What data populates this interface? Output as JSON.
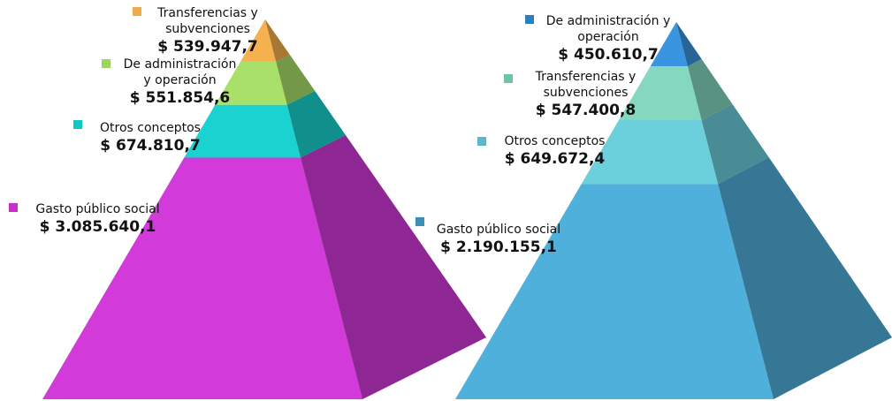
{
  "chart_data": [
    {
      "type": "pyramid",
      "categories": [
        "Transferencias y subvenciones",
        "De administración y operación",
        "Otros conceptos",
        "Gasto público social"
      ],
      "values": [
        539947.7,
        551854.6,
        674810.7,
        3085640.1
      ],
      "value_labels": [
        "$ 539.947,7",
        "$ 551.854,6",
        "$ 674.810,7",
        "$ 3.085.640,1"
      ],
      "colors": [
        "#f5b04f",
        "#a9e06a",
        "#1ad3d0",
        "#d23ad9"
      ],
      "legend_colors": [
        "#f0a94e",
        "#9bd45e",
        "#14c7c2",
        "#c62fc9"
      ]
    },
    {
      "type": "pyramid",
      "categories": [
        "De administración y operación",
        "Transferencias y subvenciones",
        "Otros conceptos",
        "Gasto público social"
      ],
      "values": [
        450610.7,
        547400.8,
        649672.4,
        2190155.1
      ],
      "value_labels": [
        "$ 450.610,7",
        "$ 547.400,8",
        "$ 649.672,4",
        "$ 2.190.155,1"
      ],
      "colors": [
        "#3a95e0",
        "#85d8bf",
        "#6ccfdc",
        "#4fb0dc"
      ],
      "legend_colors": [
        "#2a7fc0",
        "#6cc4a0",
        "#5ab8c8",
        "#3a8fb5"
      ]
    }
  ]
}
